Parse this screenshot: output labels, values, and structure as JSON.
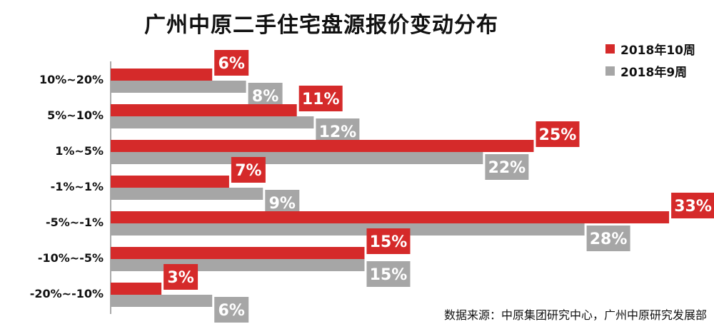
{
  "colors": {
    "oct": "#d52a2a",
    "sep": "#a6a6a6",
    "axis": "#555555"
  },
  "chart_data": {
    "type": "bar",
    "orientation": "horizontal",
    "title": "广州中原二手住宅盘源报价变动分布",
    "categories": [
      "10%~20%",
      "5%~10%",
      "1%~5%",
      "-1%~1%",
      "-5%~-1%",
      "-10%~-5%",
      "-20%~-10%"
    ],
    "series": [
      {
        "name": "2018年10周",
        "values": [
          6,
          11,
          25,
          7,
          33,
          15,
          3
        ],
        "labels": [
          "6%",
          "11%",
          "25%",
          "7%",
          "33%",
          "15%",
          "3%"
        ]
      },
      {
        "name": "2018年9周",
        "values": [
          8,
          12,
          22,
          9,
          28,
          15,
          6
        ],
        "labels": [
          "8%",
          "12%",
          "22%",
          "9%",
          "28%",
          "15%",
          "6%"
        ]
      }
    ],
    "xlim": [
      0,
      33
    ],
    "unit": "%",
    "legend_position": "top-right",
    "grid": false
  },
  "source": "数据来源：中原集团研究中心，广州中原研究发展部"
}
